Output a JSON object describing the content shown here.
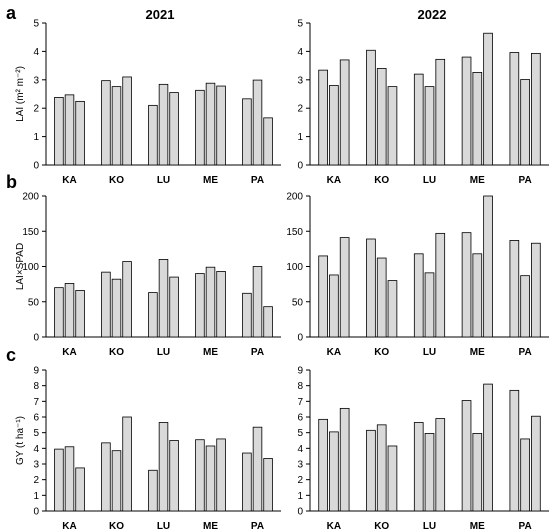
{
  "figure": {
    "panel_letters": [
      "a",
      "b",
      "c"
    ],
    "column_titles": [
      "2021",
      "2022"
    ]
  },
  "chart_data": [
    {
      "type": "bar",
      "panel": "a",
      "title": "2021",
      "ylabel": "LAI (m² m⁻²)",
      "ylim": [
        0,
        5
      ],
      "yticks": [
        0,
        1,
        2,
        3,
        4,
        5
      ],
      "categories": [
        "KA",
        "KO",
        "LU",
        "ME",
        "PA"
      ],
      "series": [
        {
          "values": [
            2.38,
            2.97,
            2.1,
            2.63,
            2.33
          ]
        },
        {
          "values": [
            2.47,
            2.76,
            2.84,
            2.88,
            2.99
          ]
        },
        {
          "values": [
            2.24,
            3.1,
            2.55,
            2.78,
            1.66
          ]
        }
      ]
    },
    {
      "type": "bar",
      "panel": "a",
      "title": "2022",
      "ylabel": "",
      "ylim": [
        0,
        5
      ],
      "yticks": [
        0,
        1,
        2,
        3,
        4,
        5
      ],
      "categories": [
        "KA",
        "KO",
        "LU",
        "ME",
        "PA"
      ],
      "series": [
        {
          "values": [
            3.34,
            4.04,
            3.2,
            3.8,
            3.96
          ]
        },
        {
          "values": [
            2.8,
            3.4,
            2.76,
            3.26,
            3.01
          ]
        },
        {
          "values": [
            3.7,
            2.76,
            3.72,
            4.64,
            3.93
          ]
        }
      ]
    },
    {
      "type": "bar",
      "panel": "b",
      "title": "",
      "ylabel": "LAI×SPAD",
      "ylim": [
        0,
        200
      ],
      "yticks": [
        0,
        50,
        100,
        150,
        200
      ],
      "categories": [
        "KA",
        "KO",
        "LU",
        "ME",
        "PA"
      ],
      "series": [
        {
          "values": [
            70,
            92,
            63,
            90,
            62
          ]
        },
        {
          "values": [
            76,
            82,
            110,
            99,
            100
          ]
        },
        {
          "values": [
            66,
            107,
            85,
            93,
            43
          ]
        }
      ]
    },
    {
      "type": "bar",
      "panel": "b",
      "title": "",
      "ylabel": "",
      "ylim": [
        0,
        200
      ],
      "yticks": [
        0,
        50,
        100,
        150,
        200
      ],
      "categories": [
        "KA",
        "KO",
        "LU",
        "ME",
        "PA"
      ],
      "series": [
        {
          "values": [
            115,
            139,
            118,
            148,
            137
          ]
        },
        {
          "values": [
            88,
            112,
            91,
            118,
            87
          ]
        },
        {
          "values": [
            141,
            80,
            147,
            200,
            133
          ]
        }
      ]
    },
    {
      "type": "bar",
      "panel": "c",
      "title": "",
      "ylabel": "GY (t ha⁻¹)",
      "ylim": [
        0,
        9
      ],
      "yticks": [
        0,
        1,
        2,
        3,
        4,
        5,
        6,
        7,
        8,
        9
      ],
      "categories": [
        "KA",
        "KO",
        "LU",
        "ME",
        "PA"
      ],
      "series": [
        {
          "values": [
            3.95,
            4.35,
            2.6,
            4.55,
            3.7
          ]
        },
        {
          "values": [
            4.1,
            3.85,
            5.65,
            4.15,
            5.35
          ]
        },
        {
          "values": [
            2.75,
            6.0,
            4.5,
            4.6,
            3.35
          ]
        }
      ]
    },
    {
      "type": "bar",
      "panel": "c",
      "title": "",
      "ylabel": "",
      "ylim": [
        0,
        9
      ],
      "yticks": [
        0,
        1,
        2,
        3,
        4,
        5,
        6,
        7,
        8,
        9
      ],
      "categories": [
        "KA",
        "KO",
        "LU",
        "ME",
        "PA"
      ],
      "series": [
        {
          "values": [
            5.85,
            5.15,
            5.65,
            7.05,
            7.7
          ]
        },
        {
          "values": [
            5.05,
            5.5,
            4.95,
            4.95,
            4.6
          ]
        },
        {
          "values": [
            6.55,
            4.15,
            5.9,
            8.1,
            6.05
          ]
        }
      ]
    }
  ],
  "style": {
    "bar_fill": "#d9d9d9",
    "bar_stroke": "#000000"
  }
}
